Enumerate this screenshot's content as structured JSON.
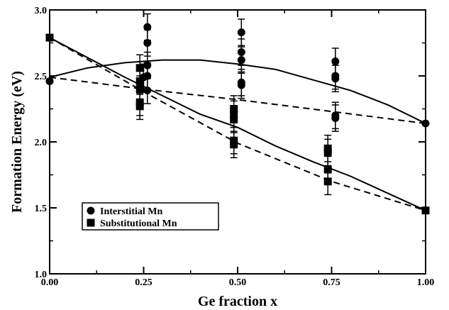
{
  "chart_data": {
    "type": "scatter",
    "xlabel": "Ge fraction x",
    "ylabel": "Formation Energy (eV)",
    "xlim": [
      0.0,
      1.0
    ],
    "ylim": [
      1.0,
      3.0
    ],
    "x_ticks": [
      "0.00",
      "0.25",
      "0.50",
      "0.75",
      "1.00"
    ],
    "y_ticks": [
      "1.0",
      "1.5",
      "2.0",
      "2.5",
      "3.0"
    ],
    "grid": false,
    "legend_position": "bottom-left",
    "series": [
      {
        "name": "Interstitial Mn",
        "marker": "circle",
        "color": "#000000",
        "points": [
          {
            "x": 0.0,
            "y": 2.46
          },
          {
            "x": 0.25,
            "y": 2.49
          },
          {
            "x": 0.26,
            "y": 2.87
          },
          {
            "x": 0.26,
            "y": 2.75
          },
          {
            "x": 0.26,
            "y": 2.58
          },
          {
            "x": 0.26,
            "y": 2.5
          },
          {
            "x": 0.26,
            "y": 2.39
          },
          {
            "x": 0.51,
            "y": 2.83
          },
          {
            "x": 0.51,
            "y": 2.68
          },
          {
            "x": 0.51,
            "y": 2.62
          },
          {
            "x": 0.51,
            "y": 2.45
          },
          {
            "x": 0.51,
            "y": 2.43
          },
          {
            "x": 0.76,
            "y": 2.61
          },
          {
            "x": 0.76,
            "y": 2.5
          },
          {
            "x": 0.76,
            "y": 2.48
          },
          {
            "x": 0.76,
            "y": 2.2
          },
          {
            "x": 0.76,
            "y": 2.18
          },
          {
            "x": 1.0,
            "y": 2.14
          }
        ]
      },
      {
        "name": "Substitutional Mn",
        "marker": "square",
        "color": "#000000",
        "points": [
          {
            "x": 0.0,
            "y": 2.79
          },
          {
            "x": 0.24,
            "y": 2.56
          },
          {
            "x": 0.24,
            "y": 2.46
          },
          {
            "x": 0.24,
            "y": 2.4
          },
          {
            "x": 0.24,
            "y": 2.3
          },
          {
            "x": 0.24,
            "y": 2.27
          },
          {
            "x": 0.49,
            "y": 2.25
          },
          {
            "x": 0.49,
            "y": 2.21
          },
          {
            "x": 0.49,
            "y": 2.17
          },
          {
            "x": 0.49,
            "y": 2.01
          },
          {
            "x": 0.49,
            "y": 1.98
          },
          {
            "x": 0.74,
            "y": 1.95
          },
          {
            "x": 0.74,
            "y": 1.92
          },
          {
            "x": 0.74,
            "y": 1.79
          },
          {
            "x": 0.74,
            "y": 1.7
          },
          {
            "x": 1.0,
            "y": 1.48
          }
        ]
      }
    ],
    "curves": [
      {
        "style": "solid",
        "x": [
          0.0,
          0.1,
          0.2,
          0.3,
          0.4,
          0.5,
          0.6,
          0.7,
          0.8,
          0.9,
          1.0
        ],
        "y": [
          2.49,
          2.56,
          2.6,
          2.62,
          2.62,
          2.59,
          2.55,
          2.47,
          2.39,
          2.28,
          2.14
        ]
      },
      {
        "style": "solid",
        "x": [
          0.0,
          0.1,
          0.2,
          0.3,
          0.4,
          0.5,
          0.6,
          0.7,
          0.8,
          0.9,
          1.0
        ],
        "y": [
          2.79,
          2.64,
          2.49,
          2.35,
          2.21,
          2.11,
          1.97,
          1.85,
          1.74,
          1.61,
          1.48
        ]
      },
      {
        "style": "dashed",
        "x": [
          0.0,
          0.25,
          0.5,
          0.75,
          1.0
        ],
        "y": [
          2.49,
          2.4,
          2.32,
          2.23,
          2.14
        ]
      },
      {
        "style": "dashed",
        "x": [
          0.0,
          0.25,
          0.5,
          0.75,
          1.0
        ],
        "y": [
          2.79,
          2.38,
          1.99,
          1.7,
          1.48
        ]
      }
    ]
  }
}
